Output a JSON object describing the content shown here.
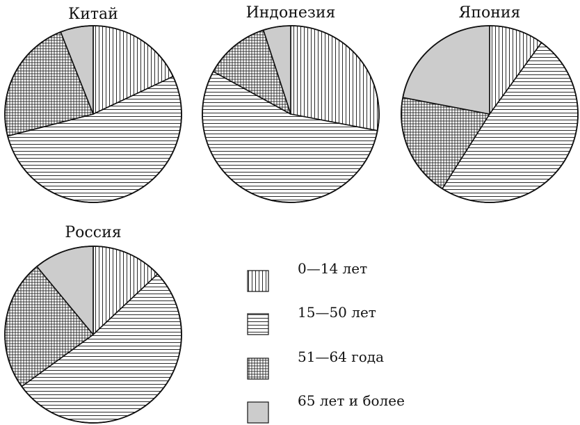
{
  "chart_data": [
    {
      "type": "pie",
      "title": "Китай",
      "categories": [
        "0—14 лет",
        "15—50 лет",
        "51—64 года",
        "65 лет и более"
      ],
      "values": [
        18,
        53,
        23,
        6
      ]
    },
    {
      "type": "pie",
      "title": "Индонезия",
      "categories": [
        "0—14 лет",
        "15—50 лет",
        "51—64 года",
        "65 лет и более"
      ],
      "values": [
        28,
        55,
        12,
        5
      ]
    },
    {
      "type": "pie",
      "title": "Япония",
      "categories": [
        "0—14 лет",
        "15—50 лет",
        "51—64 года",
        "65 лет и более"
      ],
      "values": [
        10,
        49,
        19,
        22
      ]
    },
    {
      "type": "pie",
      "title": "Россия",
      "categories": [
        "0—14 лет",
        "15—50 лет",
        "51—64 года",
        "65 лет и более"
      ],
      "values": [
        13,
        52,
        24,
        11
      ]
    }
  ],
  "legend": {
    "placement": "bottom-right",
    "items": [
      {
        "label": "0—14 лет",
        "pattern": "vertical-lines"
      },
      {
        "label": "15—50 лет",
        "pattern": "horizontal-lines"
      },
      {
        "label": "51—64 года",
        "pattern": "grid"
      },
      {
        "label": "65 лет и более",
        "pattern": "solid-gray",
        "color": "#cccccc"
      }
    ]
  }
}
